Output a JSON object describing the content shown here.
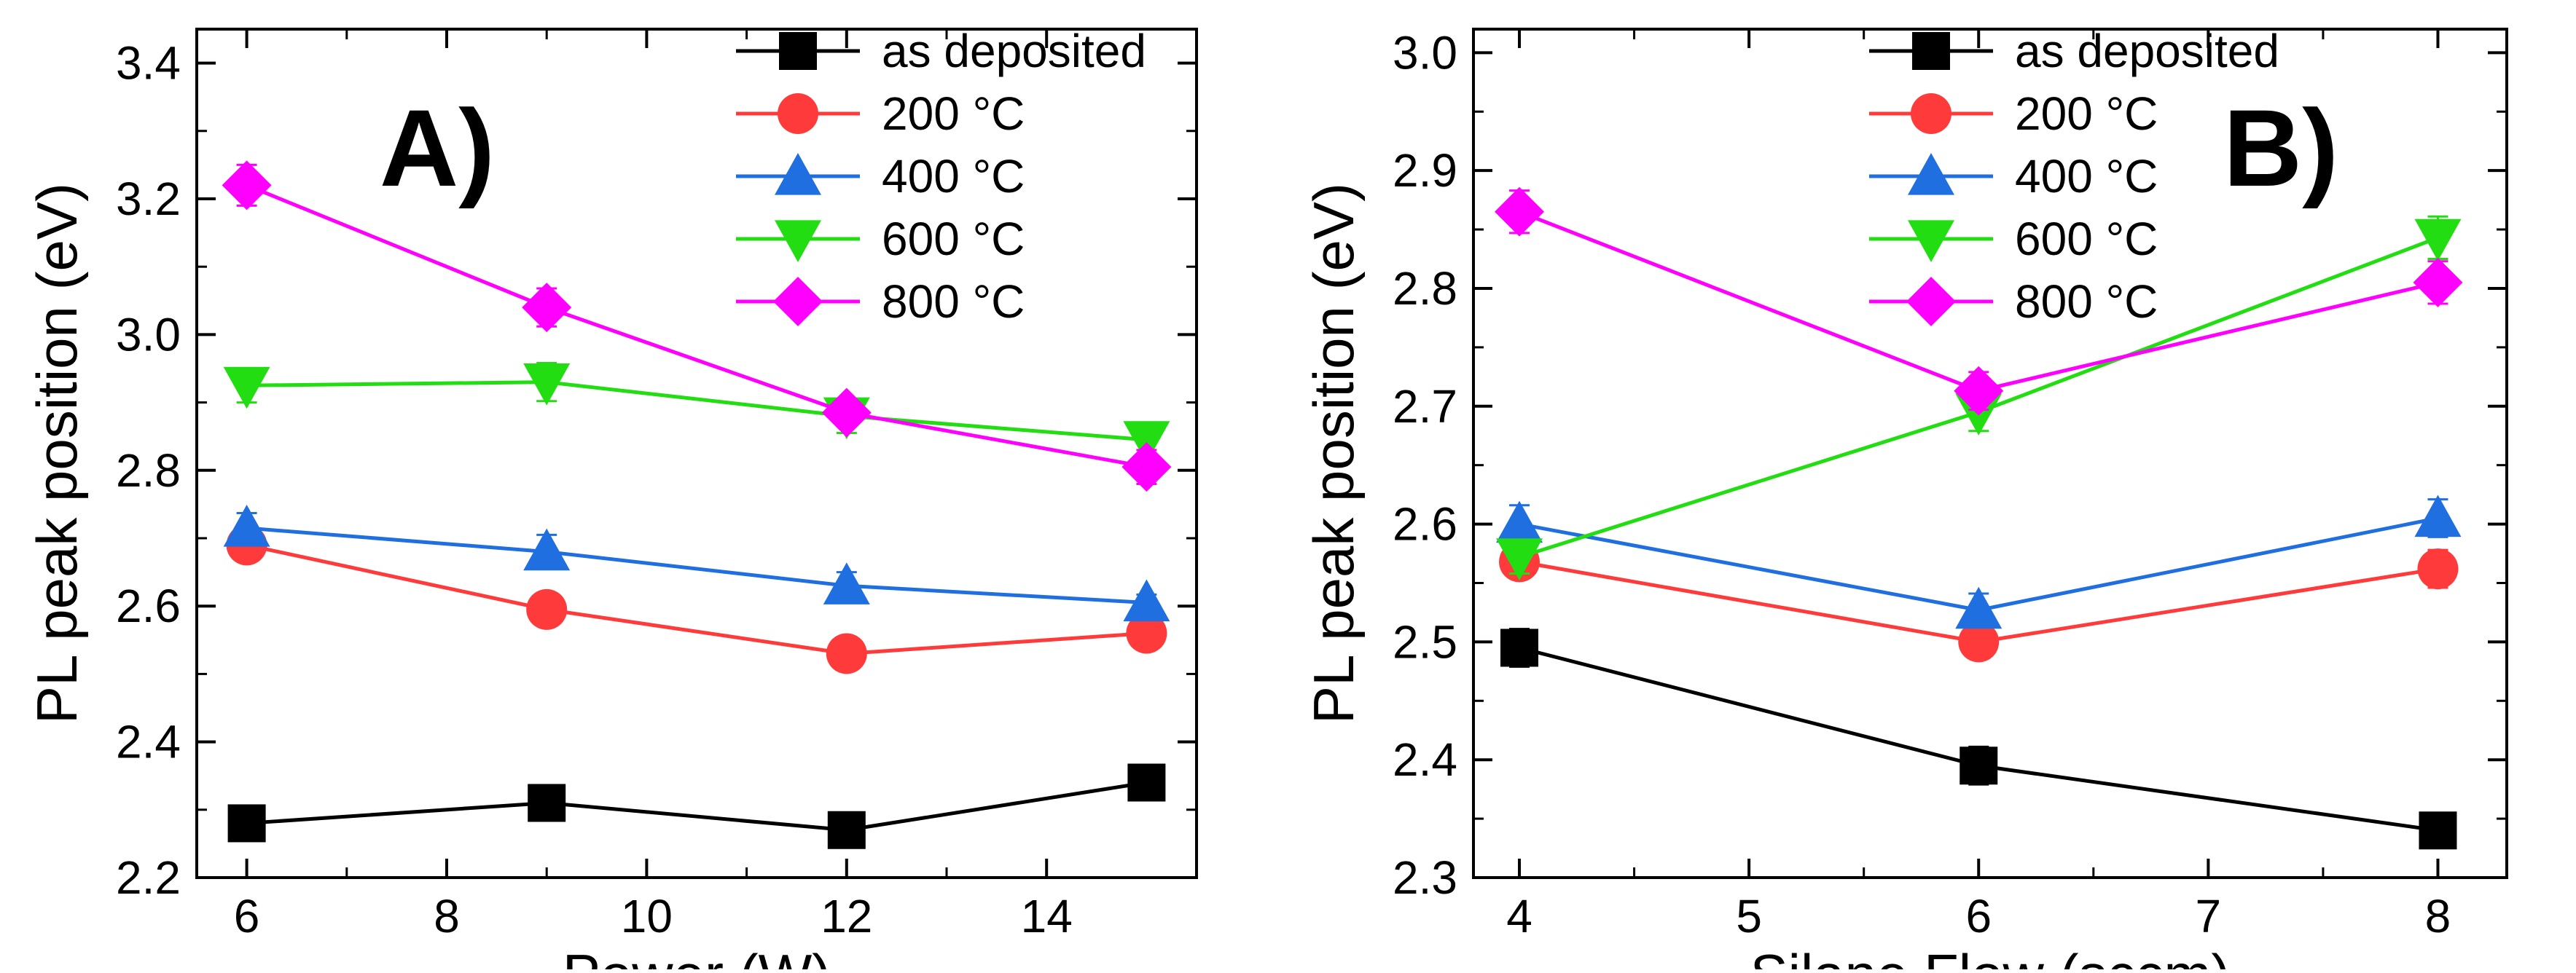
{
  "chart_data": [
    {
      "type": "line",
      "panel_label": "A)",
      "xlabel": "Power (W)",
      "ylabel": "PL peak position (eV)",
      "xlim": [
        5.5,
        15.5
      ],
      "ylim": [
        2.2,
        3.45
      ],
      "xticks": [
        6,
        8,
        10,
        12,
        14
      ],
      "xtick_labels": [
        "6",
        "8",
        "10",
        "12",
        "14"
      ],
      "yticks": [
        2.2,
        2.4,
        2.6,
        2.8,
        3.0,
        3.2,
        3.4
      ],
      "ytick_labels": [
        "2.2",
        "2.4",
        "2.6",
        "2.8",
        "3.0",
        "3.2",
        "3.4"
      ],
      "legend_position": "top-right",
      "x": [
        6,
        9,
        12,
        15
      ],
      "series": [
        {
          "name": "as deposited",
          "color": "#000000",
          "marker": "square",
          "values": [
            2.28,
            2.31,
            2.27,
            2.34
          ],
          "errors": [
            0.015,
            0.02,
            0.018,
            0.018
          ]
        },
        {
          "name": "200 °C",
          "color": "#ff3a3a",
          "marker": "circle",
          "values": [
            2.69,
            2.595,
            2.53,
            2.56
          ],
          "errors": [
            0.012,
            0.02,
            0.02,
            0.016
          ]
        },
        {
          "name": "400 °C",
          "color": "#1f6fe0",
          "marker": "triangle-up",
          "values": [
            2.715,
            2.68,
            2.63,
            2.605
          ],
          "errors": [
            0.022,
            0.025,
            0.02,
            0.012
          ]
        },
        {
          "name": "600 °C",
          "color": "#22dd11",
          "marker": "triangle-down",
          "values": [
            2.925,
            2.93,
            2.88,
            2.845
          ],
          "errors": [
            0.025,
            0.028,
            0.025,
            0.025
          ]
        },
        {
          "name": "800 °C",
          "color": "#ff00ff",
          "marker": "diamond",
          "values": [
            3.22,
            3.04,
            2.885,
            2.805
          ],
          "errors": [
            0.03,
            0.028,
            0.02,
            0.025
          ]
        }
      ]
    },
    {
      "type": "line",
      "panel_label": "B)",
      "xlabel": "Silane Flow (sccm)",
      "ylabel": "PL peak position (eV)",
      "xlim": [
        3.8,
        8.3
      ],
      "ylim": [
        2.3,
        3.02
      ],
      "xticks": [
        4,
        5,
        6,
        7,
        8
      ],
      "xtick_labels": [
        "4",
        "5",
        "6",
        "7",
        "8"
      ],
      "yticks": [
        2.3,
        2.4,
        2.5,
        2.6,
        2.7,
        2.8,
        2.9,
        3.0
      ],
      "ytick_labels": [
        "2.3",
        "2.4",
        "2.5",
        "2.6",
        "2.7",
        "2.8",
        "2.9",
        "3.0"
      ],
      "legend_position": "top-left",
      "x": [
        4,
        6,
        8
      ],
      "series": [
        {
          "name": "as deposited",
          "color": "#000000",
          "marker": "square",
          "values": [
            2.495,
            2.395,
            2.34
          ],
          "errors": [
            0.016,
            0.016,
            0.014
          ]
        },
        {
          "name": "200 °C",
          "color": "#ff3a3a",
          "marker": "circle",
          "values": [
            2.568,
            2.5,
            2.562
          ],
          "errors": [
            0.01,
            0.014,
            0.016
          ]
        },
        {
          "name": "400 °C",
          "color": "#1f6fe0",
          "marker": "triangle-up",
          "values": [
            2.6,
            2.527,
            2.605
          ],
          "errors": [
            0.016,
            0.014,
            0.016
          ]
        },
        {
          "name": "600 °C",
          "color": "#22dd11",
          "marker": "triangle-down",
          "values": [
            2.572,
            2.695,
            2.843
          ],
          "errors": [
            0.014,
            0.016,
            0.018
          ]
        },
        {
          "name": "800 °C",
          "color": "#ff00ff",
          "marker": "diamond",
          "values": [
            2.865,
            2.713,
            2.805
          ],
          "errors": [
            0.018,
            0.016,
            0.018
          ]
        }
      ]
    }
  ]
}
